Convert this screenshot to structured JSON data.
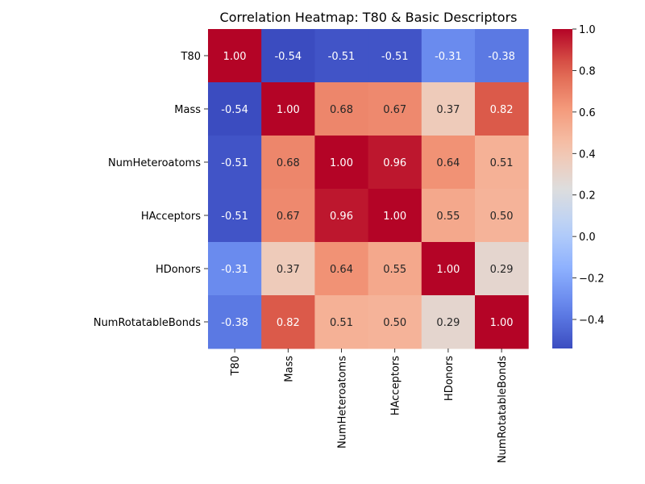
{
  "chart_data": {
    "type": "heatmap",
    "title": "Correlation Heatmap: T80 & Basic Descriptors",
    "xlabel": "",
    "ylabel": "",
    "rows": [
      "T80",
      "Mass",
      "NumHeteroatoms",
      "HAcceptors",
      "HDonors",
      "NumRotatableBonds"
    ],
    "columns": [
      "T80",
      "Mass",
      "NumHeteroatoms",
      "HAcceptors",
      "HDonors",
      "NumRotatableBonds"
    ],
    "values": [
      [
        1.0,
        -0.54,
        -0.51,
        -0.51,
        -0.31,
        -0.38
      ],
      [
        -0.54,
        1.0,
        0.68,
        0.67,
        0.37,
        0.82
      ],
      [
        -0.51,
        0.68,
        1.0,
        0.96,
        0.64,
        0.51
      ],
      [
        -0.51,
        0.67,
        0.96,
        1.0,
        0.55,
        0.5
      ],
      [
        -0.31,
        0.37,
        0.64,
        0.55,
        1.0,
        0.29
      ],
      [
        -0.38,
        0.82,
        0.51,
        0.5,
        0.29,
        1.0
      ]
    ],
    "value_format": "0.00",
    "colormap": "coolwarm",
    "color_range": [
      -0.54,
      1.0
    ],
    "colorbar_ticks": [
      "−0.4",
      "−0.2",
      "0.0",
      "0.2",
      "0.4",
      "0.6",
      "0.8",
      "1.0"
    ],
    "colorbar_tick_values": [
      -0.4,
      -0.2,
      0.0,
      0.2,
      0.4,
      0.6,
      0.8,
      1.0
    ],
    "grid": false,
    "legend": "colorbar-right"
  }
}
